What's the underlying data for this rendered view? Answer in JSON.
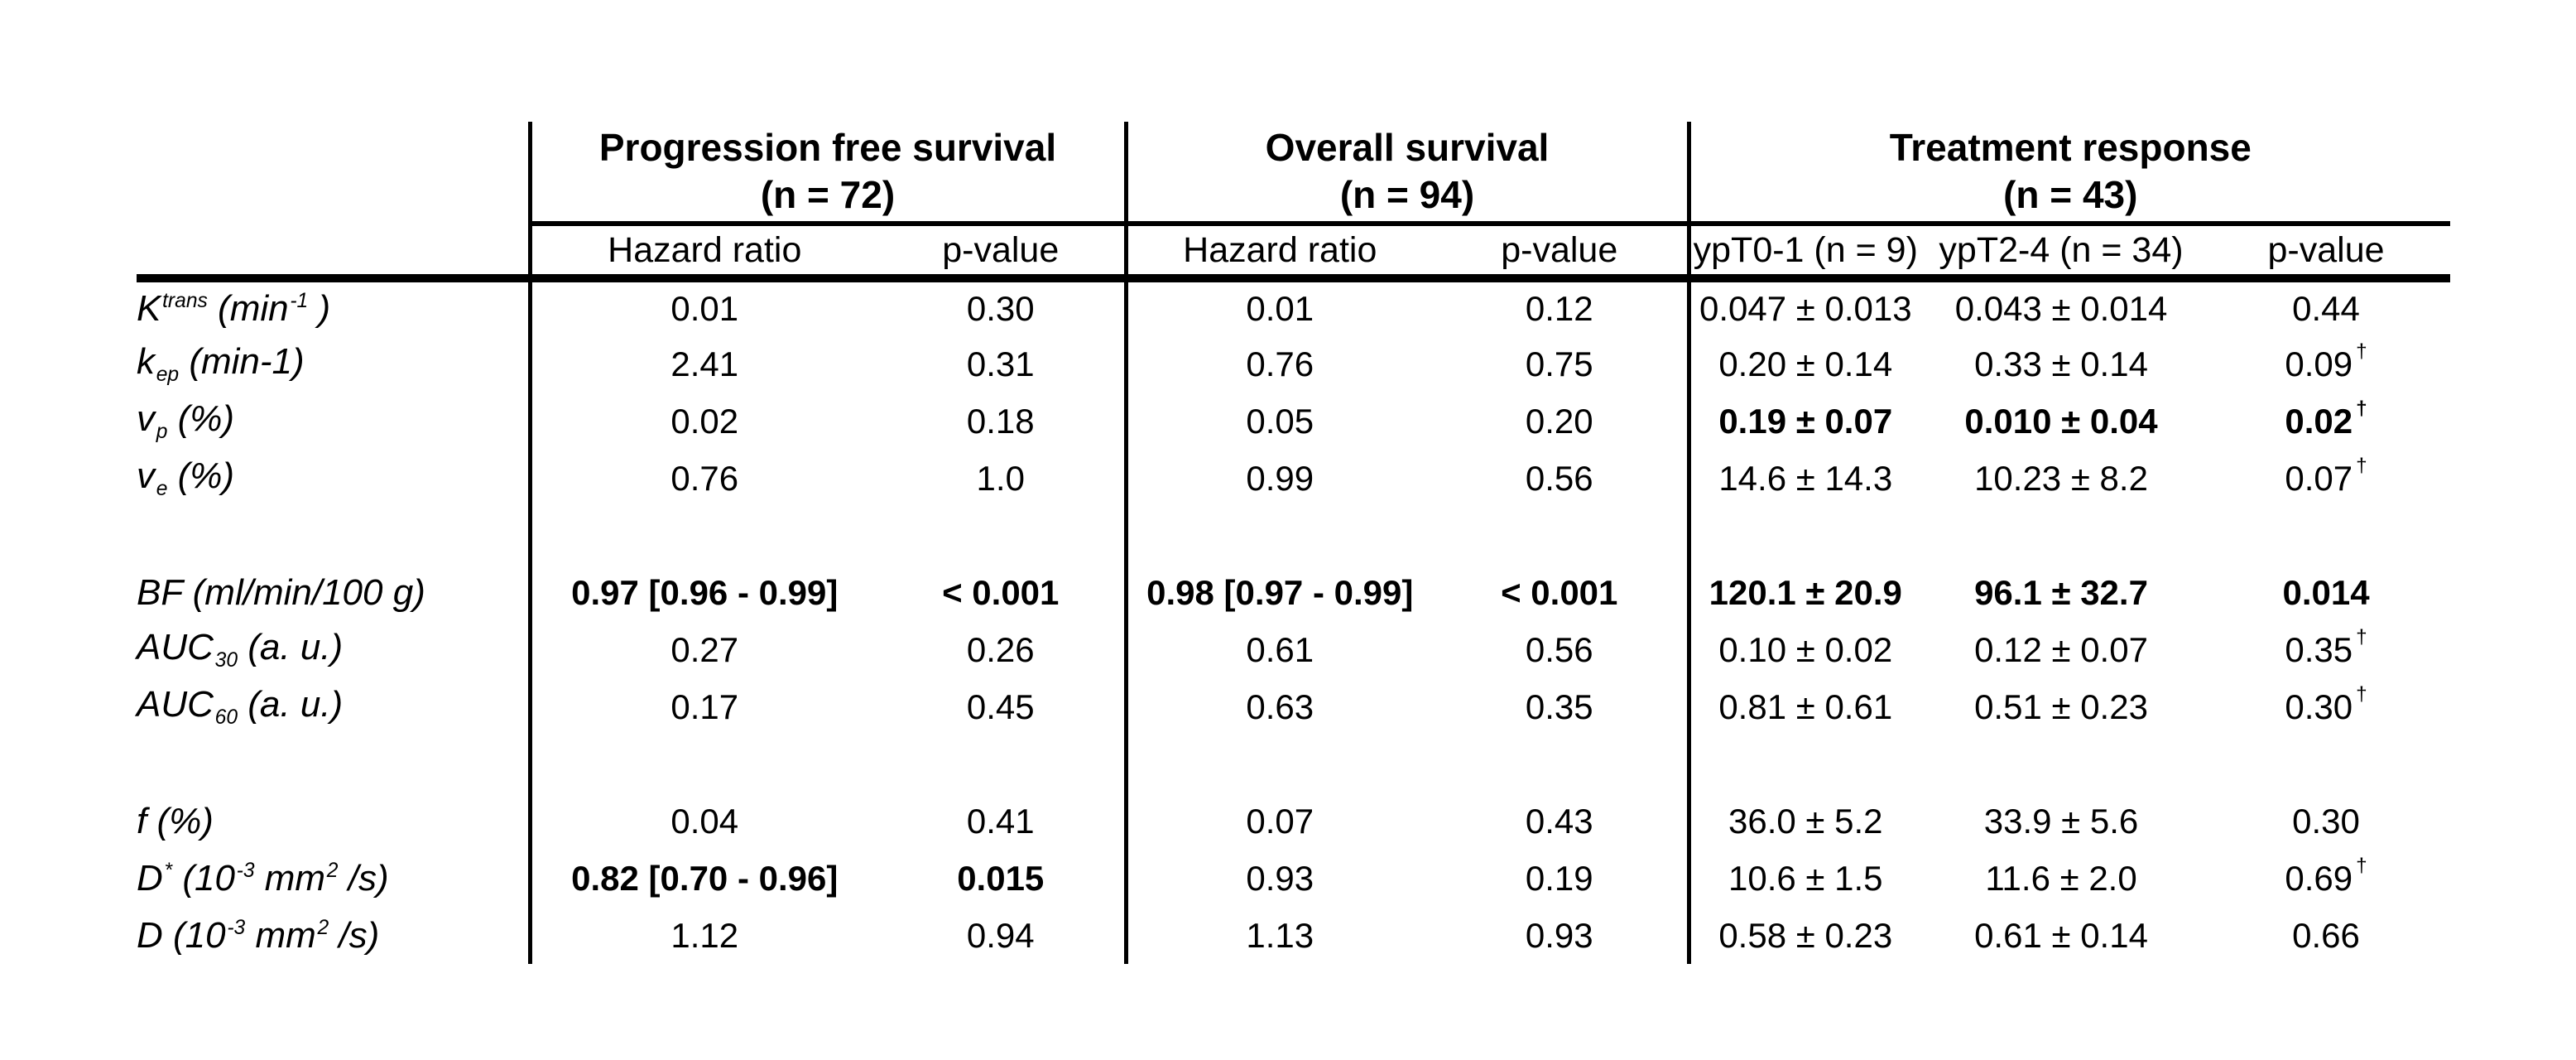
{
  "table": {
    "dagger": "†",
    "groups": [
      {
        "title": "Progression free survival",
        "n": "(n = 72)"
      },
      {
        "title": "Overall survival",
        "n": "(n = 94)"
      },
      {
        "title": "Treatment response",
        "n": "(n = 43)"
      }
    ],
    "subheaders": [
      "Hazard ratio",
      "p-value",
      "Hazard ratio",
      "p-value",
      "ypT0-1 (n = 9)",
      "ypT2-4 (n = 34)",
      "p-value"
    ],
    "rows": [
      {
        "label": [
          [
            "K",
            ""
          ],
          [
            "trans",
            "sup"
          ],
          [
            " (min",
            ""
          ],
          [
            "-1",
            "sup"
          ],
          [
            " )",
            ""
          ]
        ],
        "cells": [
          {
            "v": "0.01"
          },
          {
            "v": "0.30"
          },
          {
            "v": "0.01"
          },
          {
            "v": "0.12"
          },
          {
            "v": "0.047 ± 0.013"
          },
          {
            "v": "0.043 ± 0.014"
          },
          {
            "v": "0.44"
          }
        ]
      },
      {
        "label": [
          [
            "k",
            ""
          ],
          [
            "ep",
            "sub"
          ],
          [
            " (min-1)",
            ""
          ]
        ],
        "cells": [
          {
            "v": "2.41"
          },
          {
            "v": "0.31"
          },
          {
            "v": "0.76"
          },
          {
            "v": "0.75"
          },
          {
            "v": "0.20 ± 0.14"
          },
          {
            "v": "0.33 ± 0.14"
          },
          {
            "v": "0.09",
            "d": true
          }
        ]
      },
      {
        "label": [
          [
            "v",
            ""
          ],
          [
            "p",
            "sub"
          ],
          [
            " (%)",
            ""
          ]
        ],
        "cells": [
          {
            "v": "0.02"
          },
          {
            "v": "0.18"
          },
          {
            "v": "0.05"
          },
          {
            "v": "0.20"
          },
          {
            "v": "0.19 ± 0.07",
            "b": true
          },
          {
            "v": "0.010 ± 0.04",
            "b": true
          },
          {
            "v": "0.02",
            "b": true,
            "d": true
          }
        ]
      },
      {
        "label": [
          [
            "v",
            ""
          ],
          [
            "e",
            "sub"
          ],
          [
            " (%)",
            ""
          ]
        ],
        "cells": [
          {
            "v": "0.76"
          },
          {
            "v": "1.0"
          },
          {
            "v": "0.99"
          },
          {
            "v": "0.56"
          },
          {
            "v": "14.6 ± 14.3"
          },
          {
            "v": "10.23 ± 8.2"
          },
          {
            "v": "0.07",
            "d": true
          }
        ]
      },
      {
        "blank": true
      },
      {
        "label": [
          [
            "BF (ml/min/100 g)",
            ""
          ]
        ],
        "cells": [
          {
            "v": "0.97 [0.96 - 0.99]",
            "b": true
          },
          {
            "v": "< 0.001",
            "b": true
          },
          {
            "v": "0.98 [0.97 - 0.99]",
            "b": true
          },
          {
            "v": "< 0.001",
            "b": true
          },
          {
            "v": "120.1 ± 20.9",
            "b": true
          },
          {
            "v": "96.1 ± 32.7",
            "b": true
          },
          {
            "v": "0.014",
            "b": true
          }
        ]
      },
      {
        "label": [
          [
            "AUC",
            ""
          ],
          [
            "30",
            "sub"
          ],
          [
            " (a. u.)",
            ""
          ]
        ],
        "cells": [
          {
            "v": "0.27"
          },
          {
            "v": "0.26"
          },
          {
            "v": "0.61"
          },
          {
            "v": "0.56"
          },
          {
            "v": "0.10 ± 0.02"
          },
          {
            "v": "0.12 ± 0.07"
          },
          {
            "v": "0.35",
            "d": true
          }
        ]
      },
      {
        "label": [
          [
            "AUC",
            ""
          ],
          [
            "60",
            "sub"
          ],
          [
            " (a. u.)",
            ""
          ]
        ],
        "cells": [
          {
            "v": "0.17"
          },
          {
            "v": "0.45"
          },
          {
            "v": "0.63"
          },
          {
            "v": "0.35"
          },
          {
            "v": "0.81 ± 0.61"
          },
          {
            "v": "0.51 ± 0.23"
          },
          {
            "v": "0.30",
            "d": true
          }
        ]
      },
      {
        "blank": true
      },
      {
        "label": [
          [
            "f (%)",
            ""
          ]
        ],
        "cells": [
          {
            "v": "0.04"
          },
          {
            "v": "0.41"
          },
          {
            "v": "0.07"
          },
          {
            "v": "0.43"
          },
          {
            "v": "36.0 ± 5.2"
          },
          {
            "v": "33.9 ± 5.6"
          },
          {
            "v": "0.30"
          }
        ]
      },
      {
        "label": [
          [
            "D",
            ""
          ],
          [
            "*",
            "sup"
          ],
          [
            " (10",
            ""
          ],
          [
            "-3",
            "sup"
          ],
          [
            " mm",
            ""
          ],
          [
            "2",
            "sup"
          ],
          [
            " /s)",
            ""
          ]
        ],
        "cells": [
          {
            "v": "0.82 [0.70 - 0.96]",
            "b": true
          },
          {
            "v": "0.015",
            "b": true
          },
          {
            "v": "0.93"
          },
          {
            "v": "0.19"
          },
          {
            "v": "10.6 ± 1.5"
          },
          {
            "v": "11.6 ± 2.0"
          },
          {
            "v": "0.69",
            "d": true
          }
        ]
      },
      {
        "label": [
          [
            "D (10",
            ""
          ],
          [
            "-3",
            "sup"
          ],
          [
            " mm",
            ""
          ],
          [
            "2",
            "sup"
          ],
          [
            " /s)",
            ""
          ]
        ],
        "cells": [
          {
            "v": "1.12"
          },
          {
            "v": "0.94"
          },
          {
            "v": "1.13"
          },
          {
            "v": "0.93"
          },
          {
            "v": "0.58 ± 0.23"
          },
          {
            "v": "0.61 ± 0.14"
          },
          {
            "v": "0.66"
          }
        ]
      }
    ]
  }
}
